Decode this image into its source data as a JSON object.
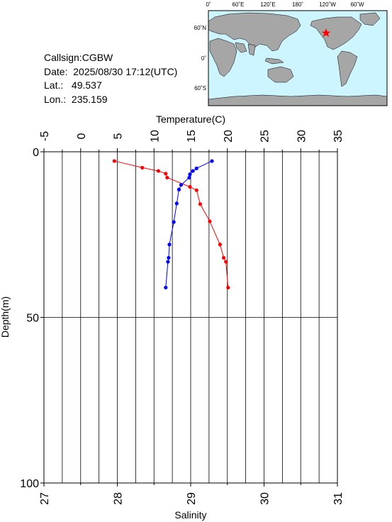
{
  "station": {
    "callsign_label": "Callsign:",
    "callsign": "CGBW",
    "date_label": "Date:",
    "date": "2025/08/30 17:12(UTC)",
    "lat_label": "Lat.:",
    "lat": "49.537",
    "lon_label": "Lon.:",
    "lon": "235.159"
  },
  "map": {
    "lon_ticks": [
      "0˚",
      "60˚E",
      "120˚E",
      "180˚",
      "120˚W",
      "60˚W"
    ],
    "lat_ticks": [
      "60˚N",
      "0˚",
      "60˚S"
    ],
    "ocean_color": "#ccf5ff",
    "land_color": "#a6a6a6",
    "marker_color": "#ff0000",
    "marker_lat": 49.537,
    "marker_lon": 235.159
  },
  "chart_data": {
    "type": "line",
    "ylabel": "Depth(m)",
    "ylim": [
      0,
      100
    ],
    "y_reversed": true,
    "y_ticks": [
      0,
      50,
      100
    ],
    "grid": true,
    "top_axis": {
      "label": "Temperature(C)",
      "range": [
        -5,
        35
      ],
      "ticks": [
        -5,
        0,
        5,
        10,
        15,
        20,
        25,
        30,
        35
      ]
    },
    "bottom_axis": {
      "label": "Salinity",
      "range": [
        27,
        31
      ],
      "ticks": [
        27,
        28,
        29,
        30,
        31
      ]
    },
    "series": [
      {
        "axis": "temperature",
        "color": "#ff0000",
        "points": [
          {
            "x": 4.6,
            "y": 2.8
          },
          {
            "x": 8.4,
            "y": 4.8
          },
          {
            "x": 10.6,
            "y": 5.8
          },
          {
            "x": 11.6,
            "y": 6.6
          },
          {
            "x": 11.8,
            "y": 7.8
          },
          {
            "x": 14.9,
            "y": 10.6
          },
          {
            "x": 15.8,
            "y": 11.6
          },
          {
            "x": 16.3,
            "y": 15.8
          },
          {
            "x": 17.6,
            "y": 21.0
          },
          {
            "x": 19.0,
            "y": 28.0
          },
          {
            "x": 19.5,
            "y": 32.0
          },
          {
            "x": 19.8,
            "y": 33.2
          },
          {
            "x": 20.1,
            "y": 41.0
          }
        ]
      },
      {
        "axis": "salinity",
        "color": "#0000ff",
        "points": [
          {
            "x": 29.29,
            "y": 2.8
          },
          {
            "x": 29.08,
            "y": 5.0
          },
          {
            "x": 29.03,
            "y": 5.8
          },
          {
            "x": 28.99,
            "y": 6.8
          },
          {
            "x": 28.98,
            "y": 7.8
          },
          {
            "x": 28.87,
            "y": 10.0
          },
          {
            "x": 28.84,
            "y": 11.4
          },
          {
            "x": 28.81,
            "y": 15.6
          },
          {
            "x": 28.77,
            "y": 21.2
          },
          {
            "x": 28.71,
            "y": 28.0
          },
          {
            "x": 28.7,
            "y": 32.0
          },
          {
            "x": 28.69,
            "y": 33.2
          },
          {
            "x": 28.66,
            "y": 41.0
          }
        ]
      }
    ]
  }
}
